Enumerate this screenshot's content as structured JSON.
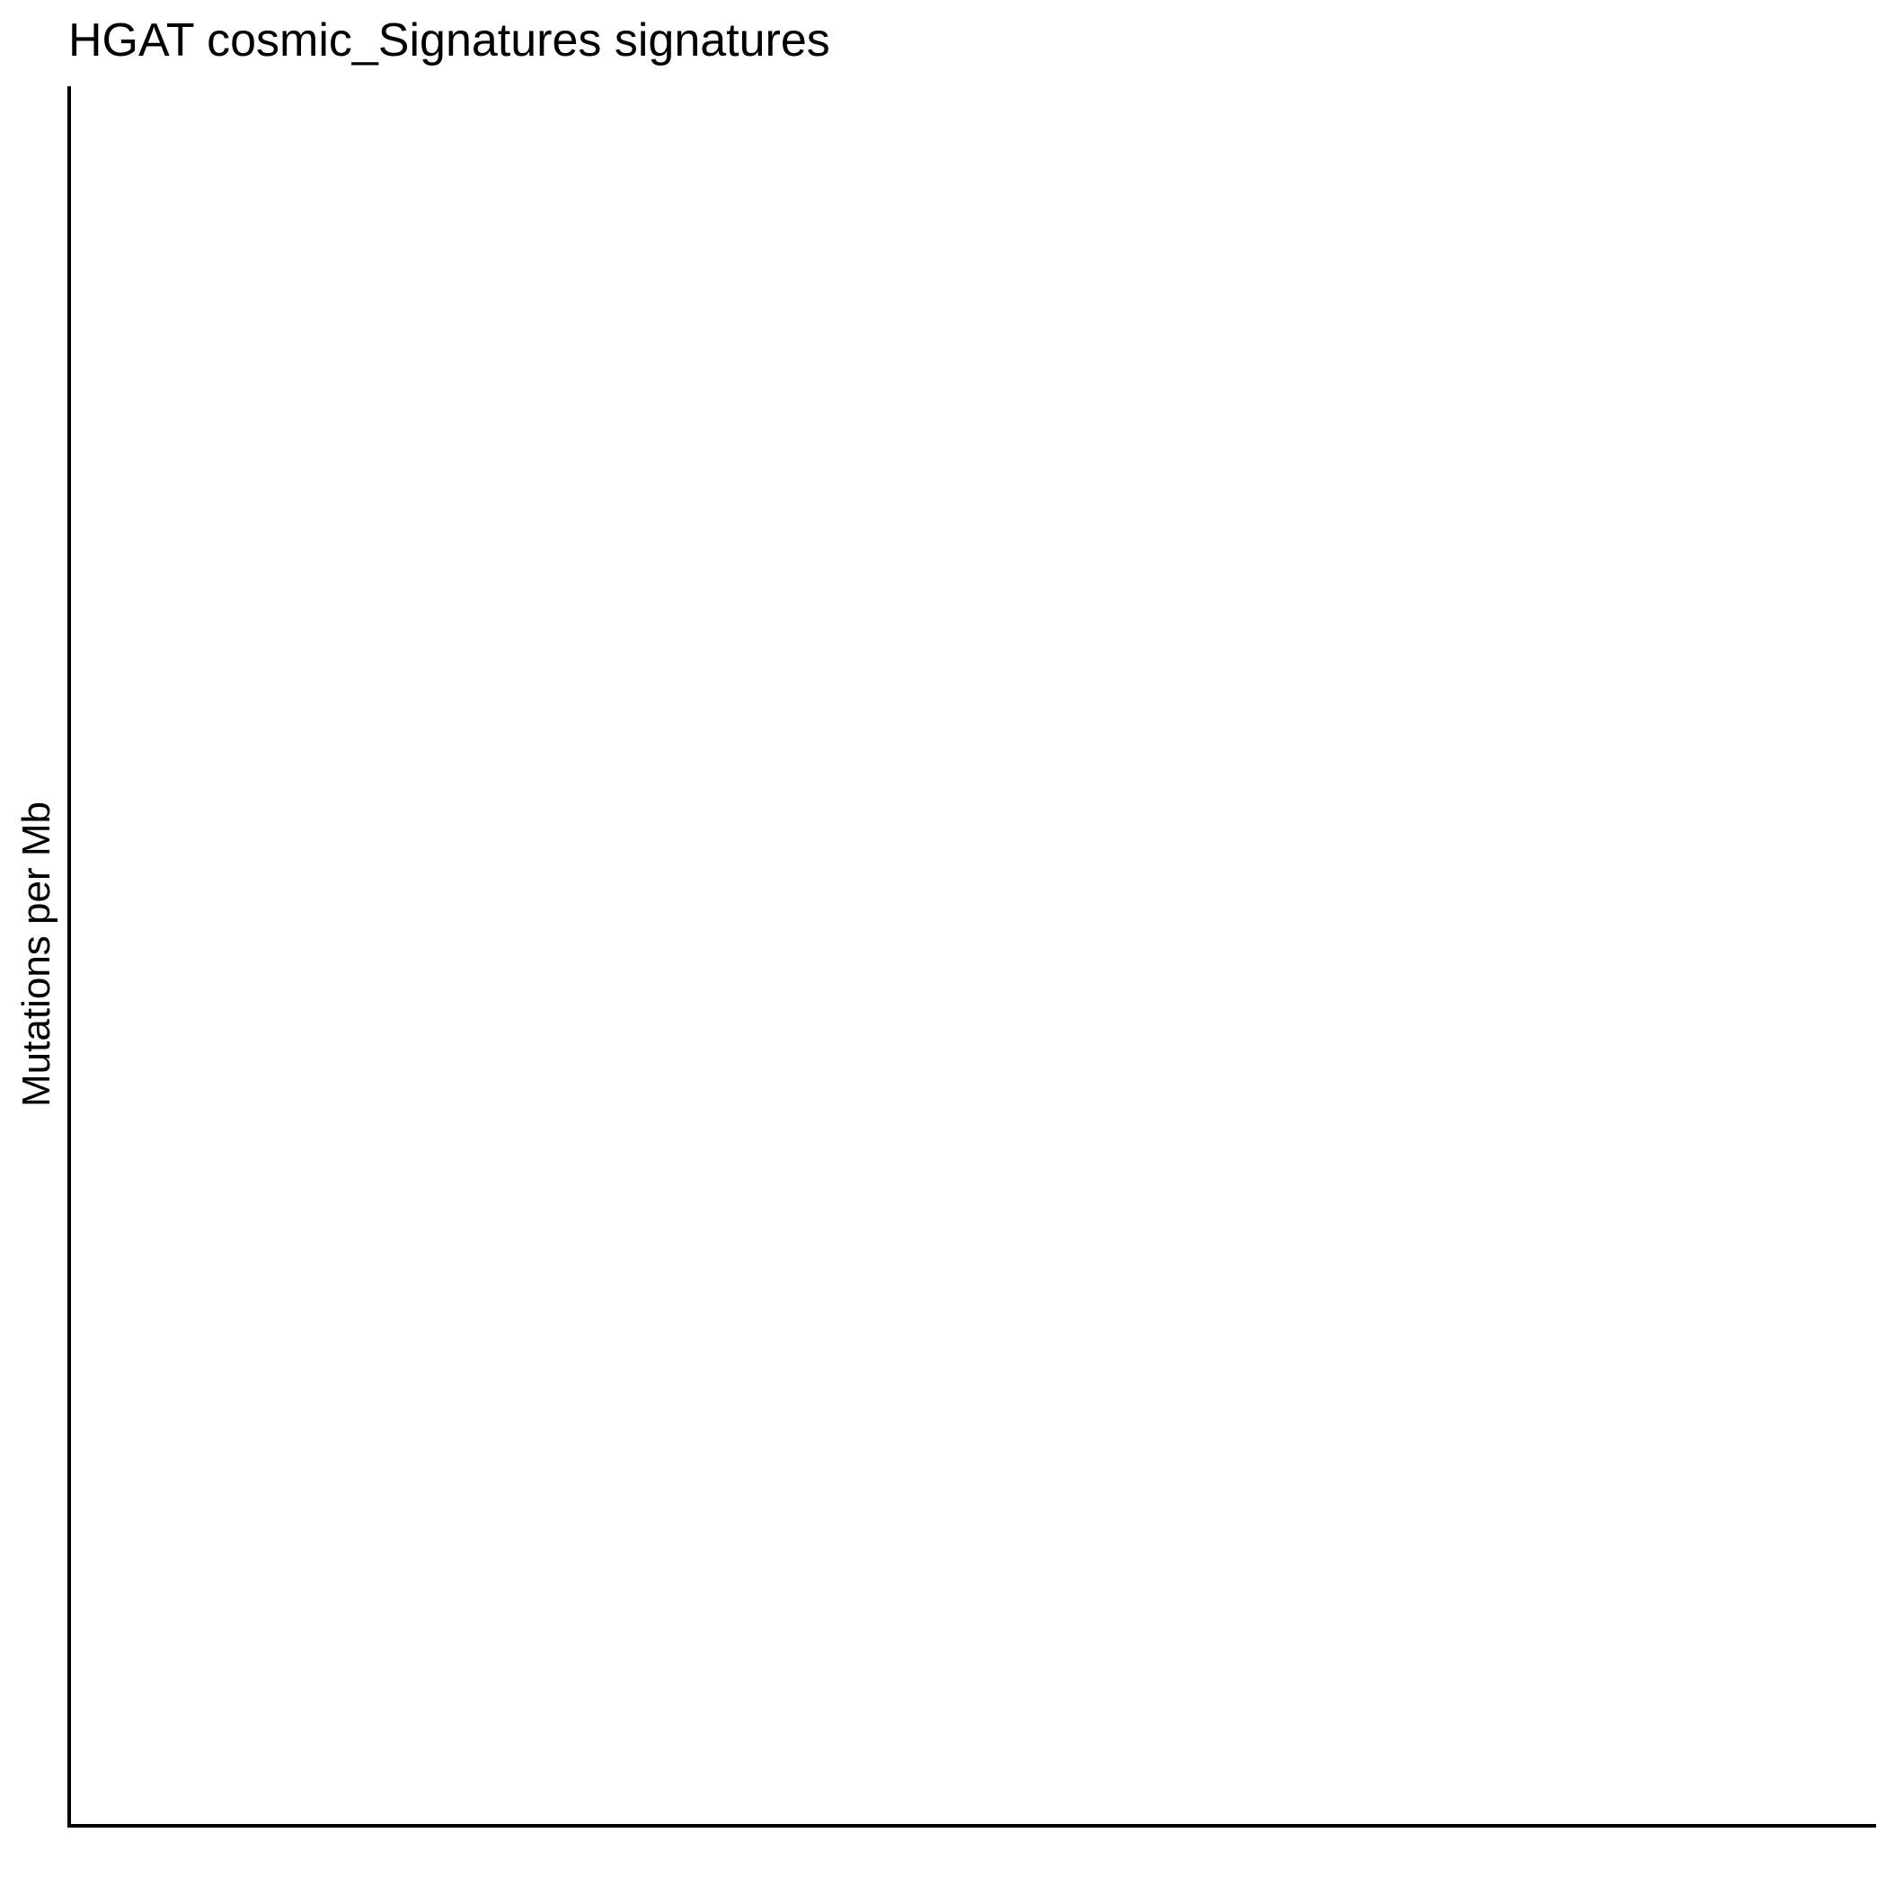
{
  "chart_data": {
    "type": "bar",
    "title": "HGAT cosmic_Signatures signatures",
    "xlabel": "",
    "ylabel": "Mutations per Mb",
    "categories": [],
    "series": [],
    "grid": false,
    "legend": "none"
  },
  "colors": {
    "background": "#ffffff",
    "axis": "#000000",
    "text": "#000000"
  }
}
